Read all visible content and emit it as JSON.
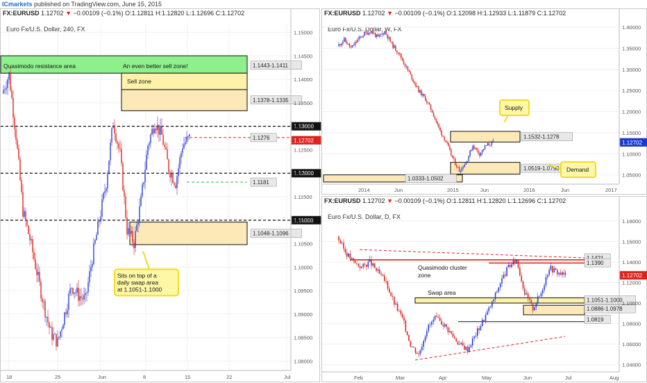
{
  "header": {
    "brand": "ICmarkets",
    "published": "published on TradingView.com, June 15, 2015"
  },
  "colors": {
    "bull": "#2a3bd6",
    "bear": "#e0211b",
    "zone_fill": "#fde9b8",
    "zone_fill_strong": "#fdf2a8",
    "green_zone": "#8ef08b",
    "callout_fill": "#fef7a6",
    "callout_border": "#f1dc23",
    "price_tag": "#1a36d6",
    "current_tag": "#e0211b"
  },
  "panels": [
    {
      "id": "h4",
      "ticker_line": {
        "sym": "FX:EURUSD",
        "last": "1.12702",
        "chg": "−0.00109 (−0.1%)",
        "o": "O:1.12811",
        "h": "H:1.12820",
        "l": "L:1.12696",
        "c": "C:1.12702"
      },
      "title": "Euro Fx/U.S. Dollar, 240, FX",
      "price_axis": [
        "1.15000",
        "1.14500",
        "1.14000",
        "1.13500",
        "1.13000",
        "1.12500",
        "1.12000",
        "1.11500",
        "1.11000",
        "1.10500",
        "1.10000",
        "1.09500",
        "1.09000",
        "1.08500",
        "1.08000"
      ],
      "time_axis": [
        "18",
        "25",
        "Jun",
        "8",
        "15",
        "22",
        "Jul"
      ],
      "tags": {
        "round_1300": "1.13000",
        "round_1200": "1.12000",
        "round_1100": "1.11000",
        "current": "1.12702",
        "zone_a": "1.1443-1.1411",
        "zone_b": "1.1378-1.1335",
        "level_1276": "1.1276",
        "level_1181": "1.1181",
        "zone_c": "1.1048-1.1096"
      },
      "annotations": {
        "quasimodo": "Quasimodo resistance area",
        "better": "An even better sell zone!",
        "sell_zone": "Sell zone",
        "callout": [
          "Sits on top of a",
          "daily swap area",
          "at 1.1051-1.1000"
        ]
      }
    },
    {
      "id": "weekly",
      "ticker_line": {
        "sym": "FX:EURUSD",
        "last": "1.12702",
        "chg": "−0.00109 (−0.1%)",
        "o": "O:1.12098",
        "h": "H:1.12933",
        "l": "L:1.11879",
        "c": "C:1.12702"
      },
      "title": "Euro Fx/U.S. Dollar, W, FX",
      "price_axis": [
        "1.40000",
        "1.35000",
        "1.30000",
        "1.25000",
        "1.20000",
        "1.15000",
        "1.10000",
        "1.05000"
      ],
      "time_axis": [
        "2014",
        "Jun",
        "2015",
        "Jun",
        "2016",
        "Jun",
        "2017"
      ],
      "tags": {
        "current": "1.12702",
        "supply_zone": "1.1532-1.1278",
        "demand_zone": "1.0519-1.0798",
        "low_zone": "1.0333-1.0502"
      },
      "annotations": {
        "supply": "Supply",
        "demand": "Demand"
      }
    },
    {
      "id": "daily",
      "ticker_line": {
        "sym": "FX:EURUSD",
        "last": "1.12702",
        "chg": "−0.00109 (−0.1%)",
        "o": "O:1.12811",
        "h": "H:1.12820",
        "l": "L:1.12696",
        "c": "C:1.12702"
      },
      "title": "Euro Fx/U.S. Dollar, D, FX",
      "price_axis": [
        "1.18000",
        "1.16000",
        "1.14000",
        "1.12000",
        "1.10000",
        "1.08000",
        "1.06000",
        "1.04000"
      ],
      "time_axis": [
        "Feb",
        "Mar",
        "Apr",
        "May",
        "Jun",
        "Jul",
        "Aug"
      ],
      "tags": {
        "current": "1.12702",
        "l1421": "1.1421",
        "l1390": "1.1390",
        "swap": "1.1051-1.1000",
        "demand": "1.0886-1.0978",
        "l0819": "1.0819"
      },
      "annotations": {
        "quasi_cluster": [
          "Quasimodo cluster",
          "zone"
        ],
        "swap_area": "Swap area"
      }
    }
  ]
}
